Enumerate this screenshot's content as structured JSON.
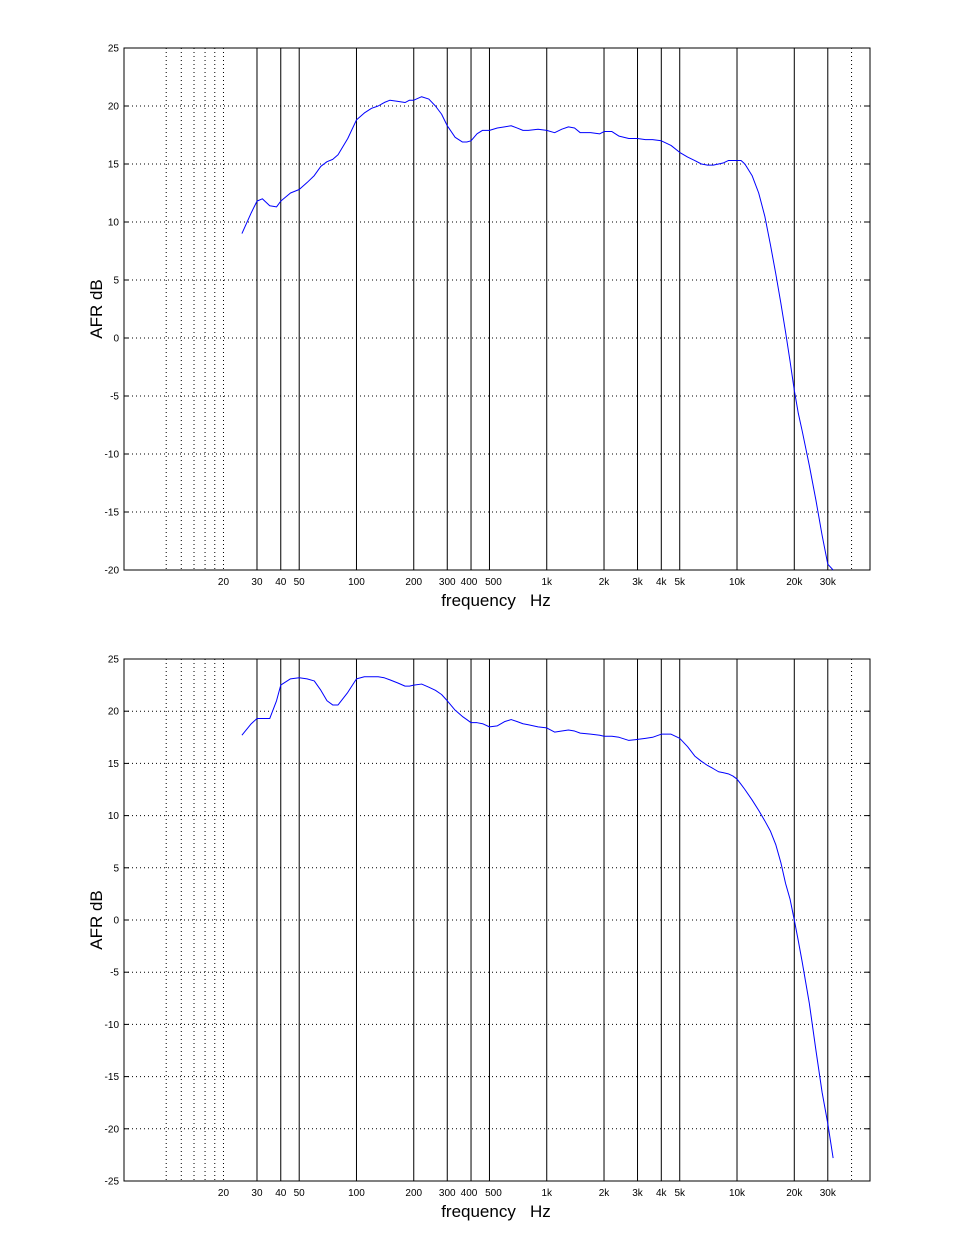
{
  "chart_data": [
    {
      "type": "line",
      "xscale": "log",
      "xlim": [
        6,
        50000
      ],
      "ylim": [
        -20,
        25
      ],
      "yticks": [
        -20,
        -15,
        -10,
        -5,
        0,
        5,
        10,
        15,
        20,
        25
      ],
      "xticks": [
        {
          "value": 20,
          "label": "20"
        },
        {
          "value": 30,
          "label": "30"
        },
        {
          "value": 40,
          "label": "40"
        },
        {
          "value": 50,
          "label": "50"
        },
        {
          "value": 100,
          "label": "100"
        },
        {
          "value": 200,
          "label": "200"
        },
        {
          "value": 300,
          "label": "300"
        },
        {
          "value": 400,
          "label": "400"
        },
        {
          "value": 500,
          "label": "500"
        },
        {
          "value": 1000,
          "label": "1k"
        },
        {
          "value": 2000,
          "label": "2k"
        },
        {
          "value": 3000,
          "label": "3k"
        },
        {
          "value": 4000,
          "label": "4k"
        },
        {
          "value": 5000,
          "label": "5k"
        },
        {
          "value": 10000,
          "label": "10k"
        },
        {
          "value": 20000,
          "label": "20k"
        },
        {
          "value": 30000,
          "label": "30k"
        }
      ],
      "solid_grid_x": [
        30,
        40,
        50,
        100,
        200,
        300,
        400,
        500,
        1000,
        2000,
        3000,
        4000,
        5000,
        10000,
        20000,
        30000
      ],
      "dotted_grid_x": [
        10,
        12,
        14,
        16,
        18,
        20,
        40000,
        50000
      ],
      "grid_y": "dotted",
      "xlabel": "frequency   Hz",
      "ylabel": "AFR dB",
      "line_color": "#0000ff",
      "series": [
        {
          "x": [
            25,
            28,
            30,
            32,
            35,
            38,
            40,
            45,
            50,
            55,
            60,
            65,
            70,
            75,
            80,
            90,
            100,
            110,
            120,
            130,
            140,
            150,
            165,
            180,
            190,
            200,
            220,
            240,
            260,
            280,
            300,
            330,
            360,
            380,
            400,
            430,
            460,
            500,
            550,
            600,
            650,
            700,
            750,
            800,
            900,
            1000,
            1100,
            1200,
            1300,
            1400,
            1500,
            1700,
            1900,
            2000,
            2200,
            2400,
            2700,
            3000,
            3300,
            3600,
            4000,
            4500,
            5000,
            5500,
            6000,
            6500,
            7000,
            7500,
            8000,
            8500,
            9000,
            9500,
            10000,
            10500,
            11000,
            12000,
            13000,
            14000,
            15000,
            16000,
            17000,
            18000,
            19000,
            20000,
            21000,
            22000,
            24000,
            26000,
            28000,
            30000,
            32000
          ],
          "y": [
            9.0,
            10.8,
            11.8,
            12.0,
            11.4,
            11.3,
            11.8,
            12.5,
            12.8,
            13.4,
            14.0,
            14.8,
            15.2,
            15.4,
            15.8,
            17.2,
            18.8,
            19.4,
            19.8,
            20.0,
            20.3,
            20.5,
            20.4,
            20.3,
            20.5,
            20.5,
            20.8,
            20.6,
            20.0,
            19.3,
            18.3,
            17.3,
            16.9,
            16.9,
            17.0,
            17.6,
            17.9,
            17.9,
            18.1,
            18.2,
            18.3,
            18.1,
            17.9,
            17.9,
            18.0,
            17.9,
            17.7,
            18.0,
            18.2,
            18.1,
            17.7,
            17.7,
            17.6,
            17.8,
            17.8,
            17.4,
            17.2,
            17.2,
            17.1,
            17.1,
            17.0,
            16.6,
            16.0,
            15.6,
            15.3,
            15.0,
            14.9,
            14.9,
            15.0,
            15.1,
            15.3,
            15.3,
            15.3,
            15.3,
            15.0,
            14.0,
            12.5,
            10.5,
            8.0,
            5.5,
            3.0,
            0.5,
            -2.0,
            -4.5,
            -6.5,
            -8.0,
            -11.0,
            -14.0,
            -17.0,
            -19.5,
            -20.0
          ]
        }
      ]
    },
    {
      "type": "line",
      "xscale": "log",
      "xlim": [
        6,
        50000
      ],
      "ylim": [
        -25,
        25
      ],
      "yticks": [
        -25,
        -20,
        -15,
        -10,
        -5,
        0,
        5,
        10,
        15,
        20,
        25
      ],
      "xticks": [
        {
          "value": 20,
          "label": "20"
        },
        {
          "value": 30,
          "label": "30"
        },
        {
          "value": 40,
          "label": "40"
        },
        {
          "value": 50,
          "label": "50"
        },
        {
          "value": 100,
          "label": "100"
        },
        {
          "value": 200,
          "label": "200"
        },
        {
          "value": 300,
          "label": "300"
        },
        {
          "value": 400,
          "label": "400"
        },
        {
          "value": 500,
          "label": "500"
        },
        {
          "value": 1000,
          "label": "1k"
        },
        {
          "value": 2000,
          "label": "2k"
        },
        {
          "value": 3000,
          "label": "3k"
        },
        {
          "value": 4000,
          "label": "4k"
        },
        {
          "value": 5000,
          "label": "5k"
        },
        {
          "value": 10000,
          "label": "10k"
        },
        {
          "value": 20000,
          "label": "20k"
        },
        {
          "value": 30000,
          "label": "30k"
        }
      ],
      "solid_grid_x": [
        30,
        40,
        50,
        100,
        200,
        300,
        400,
        500,
        1000,
        2000,
        3000,
        4000,
        5000,
        10000,
        20000,
        30000
      ],
      "dotted_grid_x": [
        10,
        12,
        14,
        16,
        18,
        20,
        40000,
        50000
      ],
      "grid_y": "dotted",
      "xlabel": "frequency   Hz",
      "ylabel": "AFR dB",
      "line_color": "#0000ff",
      "series": [
        {
          "x": [
            25,
            28,
            30,
            32,
            35,
            38,
            40,
            45,
            50,
            55,
            60,
            65,
            70,
            75,
            80,
            90,
            100,
            110,
            120,
            130,
            140,
            150,
            165,
            180,
            190,
            200,
            220,
            240,
            260,
            280,
            300,
            330,
            360,
            380,
            400,
            430,
            460,
            500,
            550,
            600,
            650,
            700,
            750,
            800,
            900,
            1000,
            1100,
            1200,
            1300,
            1400,
            1500,
            1700,
            1900,
            2000,
            2200,
            2400,
            2700,
            3000,
            3300,
            3600,
            4000,
            4500,
            5000,
            5500,
            6000,
            6500,
            7000,
            7500,
            8000,
            8500,
            9000,
            9500,
            10000,
            10500,
            11000,
            12000,
            13000,
            14000,
            15000,
            16000,
            17000,
            18000,
            19000,
            20000,
            21000,
            22000,
            24000,
            26000,
            28000,
            30000,
            32000
          ],
          "y": [
            17.7,
            18.8,
            19.3,
            19.3,
            19.3,
            21.0,
            22.5,
            23.1,
            23.2,
            23.1,
            22.9,
            22.0,
            21.0,
            20.6,
            20.6,
            21.8,
            23.1,
            23.3,
            23.3,
            23.3,
            23.2,
            23.0,
            22.7,
            22.4,
            22.4,
            22.5,
            22.6,
            22.3,
            22.0,
            21.6,
            21.0,
            20.1,
            19.5,
            19.2,
            18.9,
            18.9,
            18.8,
            18.5,
            18.6,
            19.0,
            19.2,
            19.0,
            18.8,
            18.7,
            18.5,
            18.4,
            18.0,
            18.1,
            18.2,
            18.1,
            17.9,
            17.8,
            17.7,
            17.6,
            17.6,
            17.5,
            17.2,
            17.3,
            17.4,
            17.5,
            17.8,
            17.8,
            17.4,
            16.6,
            15.7,
            15.2,
            14.8,
            14.5,
            14.2,
            14.1,
            14.0,
            13.8,
            13.5,
            13.0,
            12.5,
            11.5,
            10.5,
            9.5,
            8.5,
            7.2,
            5.5,
            3.5,
            2.0,
            0.0,
            -2.0,
            -4.0,
            -8.0,
            -12.5,
            -16.5,
            -19.5,
            -22.8
          ]
        }
      ]
    }
  ]
}
